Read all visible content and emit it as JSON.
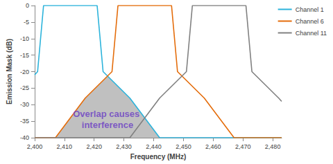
{
  "chart_data": {
    "type": "line",
    "x_label": "Frequency (MHz)",
    "y_label": "Emission Mask (dB)",
    "xlim": [
      2400,
      2483
    ],
    "xticks": [
      2400,
      2410,
      2420,
      2430,
      2440,
      2450,
      2460,
      2470,
      2480
    ],
    "ylim": [
      -40,
      0
    ],
    "yticks": [
      -40,
      -35,
      -30,
      -25,
      -20,
      -15,
      -10,
      -5,
      0
    ],
    "grid": false,
    "legend": "upper right",
    "series": [
      {
        "name": "Channel 1",
        "color": "#2bb3db",
        "x": [
          2400,
          2401,
          2403,
          2421,
          2423,
          2432,
          2442,
          2483
        ],
        "values": [
          -21,
          -20,
          0,
          0,
          -20,
          -28,
          -40,
          -40
        ]
      },
      {
        "name": "Channel 6",
        "color": "#e46c0a",
        "x": [
          2400,
          2407,
          2417,
          2426,
          2428,
          2446,
          2448,
          2457,
          2467,
          2483
        ],
        "values": [
          -40,
          -40,
          -28,
          -20,
          0,
          0,
          -20,
          -28,
          -40,
          -40
        ]
      },
      {
        "name": "Channel 11",
        "color": "#808080",
        "x": [
          2400,
          2432,
          2442,
          2451,
          2453,
          2471,
          2473,
          2482,
          2483
        ],
        "values": [
          -40,
          -40,
          -28,
          -20,
          0,
          0,
          -20,
          -28,
          -29
        ]
      }
    ],
    "shaded_region": {
      "label": "Overlap causes interference",
      "color": "#c0c0c0",
      "label_color": "#6a3cc4",
      "x": [
        2407,
        2417,
        2424.5,
        2432,
        2442
      ],
      "values": [
        -40,
        -28,
        -21.3,
        -28,
        -40
      ]
    }
  }
}
